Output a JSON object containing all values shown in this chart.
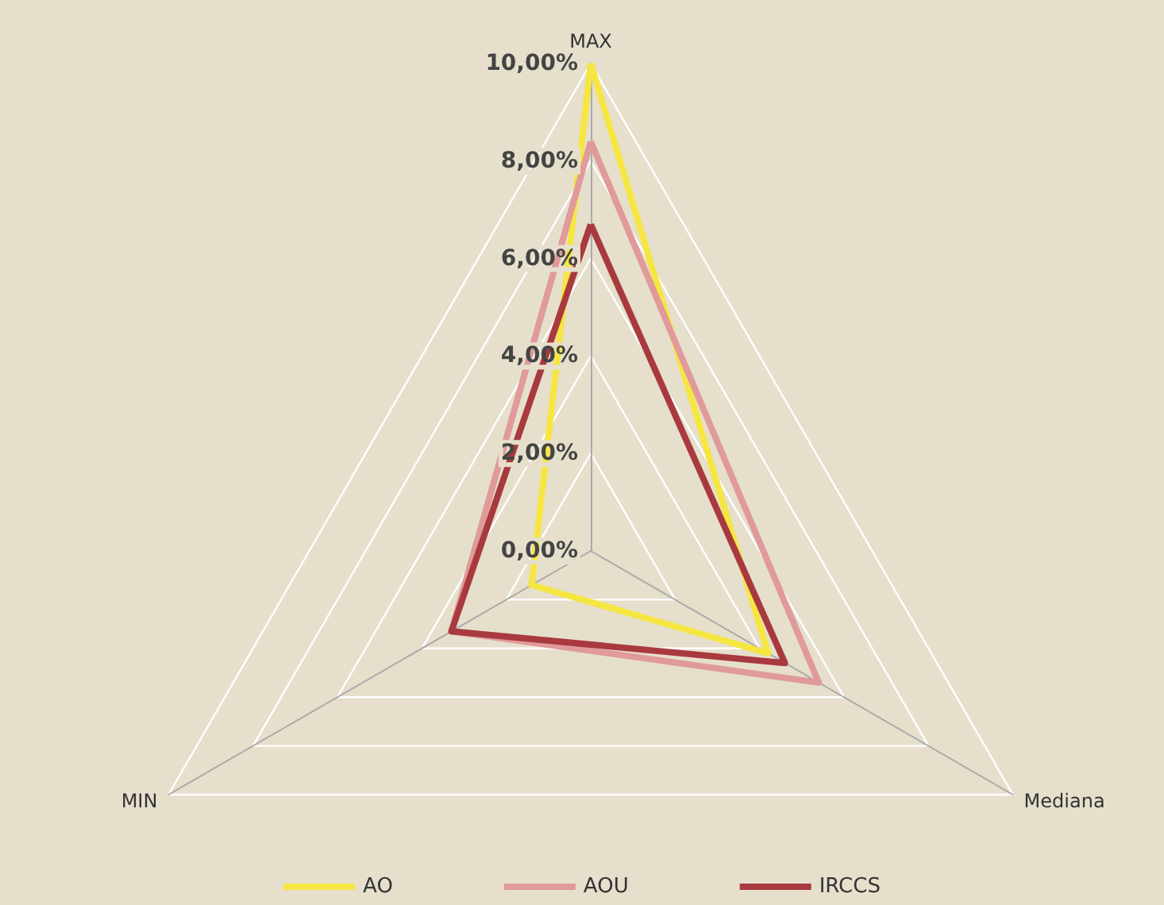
{
  "chart_data": {
    "type": "radar",
    "categories": [
      "MAX",
      "Mediana",
      "MIN"
    ],
    "ylim": [
      0,
      10
    ],
    "yticks": [
      {
        "value": 0,
        "label": "0,00%"
      },
      {
        "value": 2,
        "label": "2,00%"
      },
      {
        "value": 4,
        "label": "4,00%"
      },
      {
        "value": 6,
        "label": "6,00%"
      },
      {
        "value": 8,
        "label": "8,00%"
      },
      {
        "value": 10,
        "label": "10,00%"
      }
    ],
    "series": [
      {
        "name": "AO",
        "color": "#f5e642",
        "values": [
          10,
          4.2,
          1.4
        ]
      },
      {
        "name": "AOU",
        "color": "#e09a9a",
        "values": [
          8.4,
          5.4,
          3.3
        ]
      },
      {
        "name": "IRCCS",
        "color": "#a83a3f",
        "values": [
          6.7,
          4.6,
          3.3
        ]
      }
    ],
    "legend": "bottom",
    "grid": true,
    "marker": "none"
  }
}
